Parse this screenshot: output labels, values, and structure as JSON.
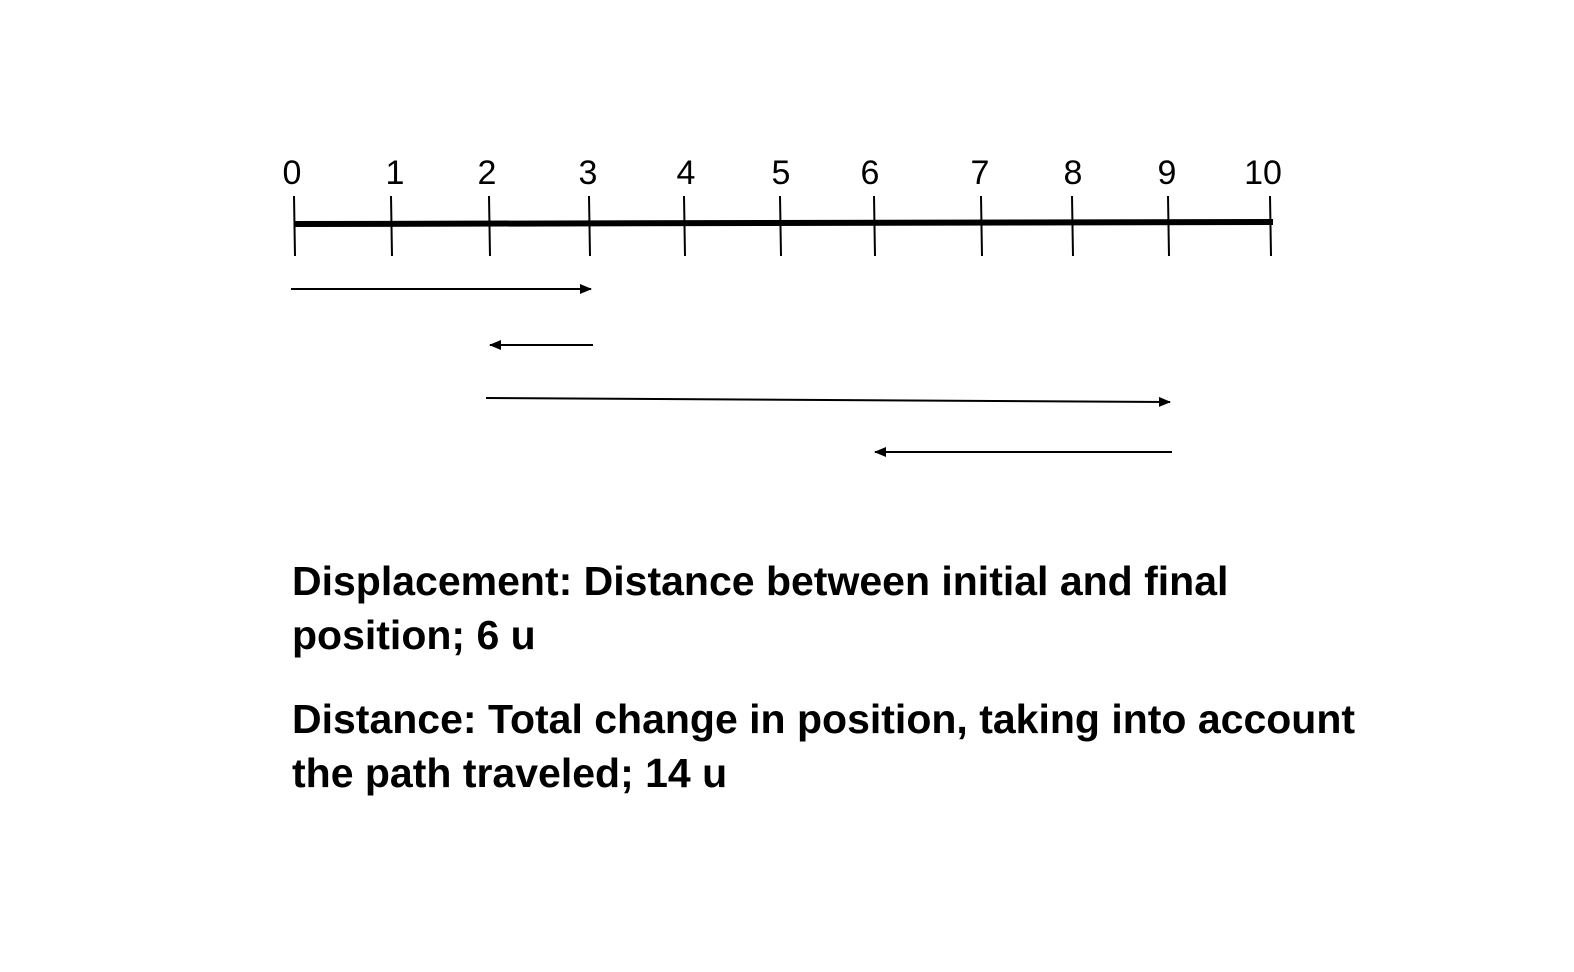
{
  "number_line": {
    "min": 0,
    "max": 10,
    "tick_labels": [
      "0",
      "1",
      "2",
      "3",
      "4",
      "5",
      "6",
      "7",
      "8",
      "9",
      "10"
    ]
  },
  "movements": [
    {
      "from": 0,
      "to": 3
    },
    {
      "from": 3,
      "to": 2
    },
    {
      "from": 2,
      "to": 9
    },
    {
      "from": 9,
      "to": 6
    }
  ],
  "captions": {
    "displacement": "Displacement: Distance between initial and final position; 6 u",
    "distance": "Distance: Total change in position, taking into account the path traveled; 14 u"
  },
  "colors": {
    "line": "#000000",
    "background": "#ffffff"
  }
}
